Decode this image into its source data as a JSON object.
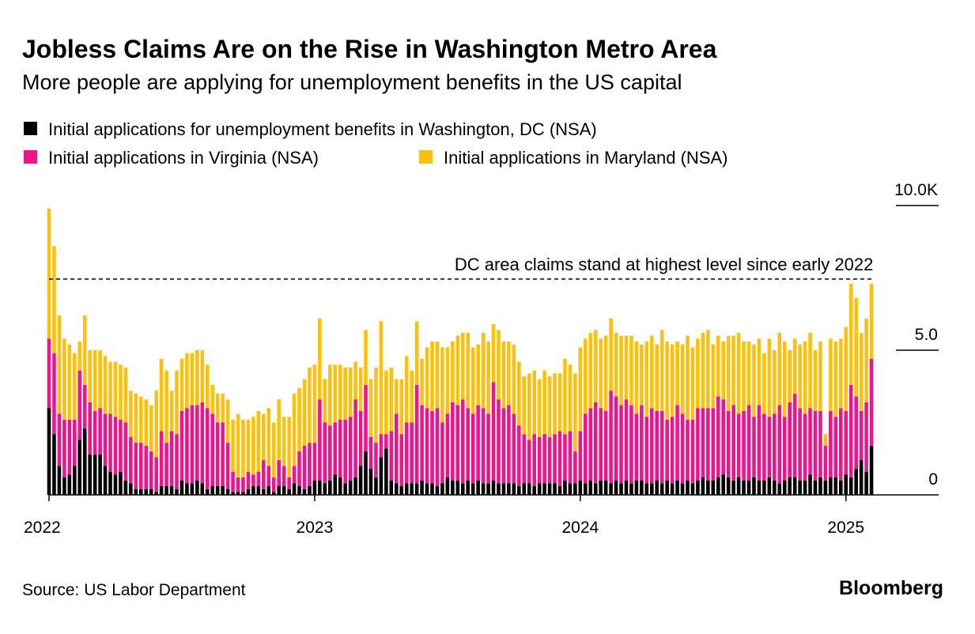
{
  "chart_data": {
    "type": "stacked_bar",
    "title": "Jobless Claims Are on the Rise in Washington Metro Area",
    "subtitle": "More people are applying for unemployment benefits in the US capital",
    "source": "Source: US Labor Department",
    "brand": "Bloomberg",
    "annotation": {
      "value": 7.46,
      "label": "DC area claims stand at highest level since early 2022"
    },
    "categories": [
      "2022",
      null,
      null,
      null,
      null,
      null,
      null,
      null,
      null,
      null,
      null,
      null,
      null,
      null,
      null,
      null,
      null,
      null,
      null,
      null,
      null,
      null,
      null,
      null,
      null,
      null,
      null,
      null,
      null,
      null,
      null,
      null,
      null,
      null,
      null,
      null,
      null,
      null,
      null,
      null,
      null,
      null,
      null,
      null,
      null,
      null,
      null,
      null,
      null,
      null,
      null,
      null,
      "2023",
      null,
      null,
      null,
      null,
      null,
      null,
      null,
      null,
      null,
      null,
      null,
      null,
      null,
      null,
      null,
      null,
      null,
      null,
      null,
      null,
      null,
      null,
      null,
      null,
      null,
      null,
      null,
      null,
      null,
      null,
      null,
      null,
      null,
      null,
      null,
      null,
      null,
      null,
      null,
      null,
      null,
      null,
      null,
      null,
      null,
      null,
      null,
      null,
      null,
      null,
      null,
      "2024",
      null,
      null,
      null,
      null,
      null,
      null,
      null,
      null,
      null,
      null,
      null,
      null,
      null,
      null,
      null,
      null,
      null,
      null,
      null,
      null,
      null,
      null,
      null,
      null,
      null,
      null,
      null,
      null,
      null,
      null,
      null,
      null,
      null,
      null,
      null,
      null,
      null,
      null,
      null,
      null,
      null,
      null,
      null,
      null,
      null,
      null,
      null,
      null,
      null,
      null,
      null,
      "2025",
      null,
      null,
      null,
      null,
      null
    ],
    "ylim": [
      0,
      10
    ],
    "yticks": [
      0,
      {
        "value": 5,
        "label": "5.0"
      },
      {
        "value": 10,
        "label": "10.0K"
      }
    ],
    "series": [
      {
        "name": "Initial applications for unemployment benefits in Washington, DC (NSA)",
        "color": "#000000",
        "values": [
          3.0,
          2.1,
          1.0,
          0.6,
          0.7,
          1.0,
          1.9,
          2.3,
          1.4,
          1.4,
          1.4,
          1.0,
          0.8,
          0.7,
          0.8,
          0.5,
          0.4,
          0.2,
          0.2,
          0.2,
          0.2,
          0.1,
          0.3,
          0.3,
          0.3,
          0.2,
          0.5,
          0.4,
          0.4,
          0.5,
          0.4,
          0.2,
          0.3,
          0.3,
          0.3,
          0.2,
          0.1,
          0.1,
          0.1,
          0.2,
          0.3,
          0.3,
          0.2,
          0.3,
          0.1,
          0.3,
          0.3,
          0.2,
          0.4,
          0.3,
          0.2,
          0.3,
          0.5,
          0.5,
          0.4,
          0.5,
          0.7,
          0.6,
          0.4,
          0.5,
          0.6,
          1.0,
          1.5,
          0.9,
          0.6,
          1.3,
          1.6,
          0.5,
          0.4,
          0.3,
          0.4,
          0.4,
          0.4,
          0.5,
          0.4,
          0.4,
          0.3,
          0.4,
          0.6,
          0.5,
          0.5,
          0.4,
          0.5,
          0.4,
          0.5,
          0.4,
          0.4,
          0.5,
          0.4,
          0.4,
          0.4,
          0.4,
          0.3,
          0.4,
          0.4,
          0.3,
          0.4,
          0.4,
          0.4,
          0.4,
          0.3,
          0.5,
          0.4,
          0.4,
          0.5,
          0.4,
          0.5,
          0.4,
          0.5,
          0.5,
          0.4,
          0.5,
          0.4,
          0.5,
          0.4,
          0.5,
          0.5,
          0.4,
          0.4,
          0.5,
          0.4,
          0.5,
          0.4,
          0.5,
          0.4,
          0.5,
          0.4,
          0.5,
          0.6,
          0.5,
          0.5,
          0.6,
          0.7,
          0.6,
          0.5,
          0.6,
          0.5,
          0.5,
          0.6,
          0.5,
          0.5,
          0.6,
          0.5,
          0.4,
          0.5,
          0.6,
          0.6,
          0.5,
          0.5,
          0.7,
          0.5,
          0.6,
          0.5,
          0.6,
          0.6,
          0.5,
          0.7,
          0.6,
          0.9,
          1.2,
          0.8,
          1.7
        ]
      },
      {
        "name": "Initial applications in Virginia (NSA)",
        "color": "#ec168c",
        "values": [
          2.4,
          2.8,
          1.8,
          2.0,
          1.9,
          1.6,
          2.4,
          1.5,
          1.8,
          1.5,
          1.6,
          1.8,
          2.0,
          2.0,
          1.8,
          2.0,
          1.6,
          1.6,
          1.6,
          1.5,
          1.3,
          1.2,
          1.9,
          1.5,
          1.9,
          1.9,
          2.4,
          2.6,
          2.7,
          2.6,
          2.8,
          2.8,
          2.5,
          2.2,
          2.2,
          1.6,
          0.7,
          0.5,
          0.5,
          0.6,
          0.4,
          0.5,
          1.0,
          0.7,
          0.5,
          0.9,
          0.7,
          0.4,
          0.6,
          1.2,
          1.5,
          1.5,
          1.3,
          2.8,
          2.1,
          1.9,
          1.8,
          2.0,
          2.2,
          2.2,
          2.7,
          1.9,
          2.3,
          1.1,
          1.2,
          0.8,
          0.5,
          1.7,
          2.4,
          1.8,
          2.1,
          2.1,
          3.4,
          2.6,
          2.6,
          2.5,
          2.7,
          2.1,
          2.2,
          2.7,
          2.6,
          2.9,
          2.5,
          2.4,
          2.6,
          2.6,
          2.4,
          3.4,
          2.9,
          2.6,
          2.7,
          2.4,
          2.1,
          1.7,
          1.5,
          1.8,
          1.6,
          1.7,
          1.6,
          1.7,
          1.9,
          1.6,
          1.8,
          1.1,
          1.7,
          2.4,
          2.5,
          2.8,
          2.5,
          2.4,
          3.2,
          2.9,
          2.7,
          2.8,
          2.7,
          2.3,
          2.6,
          2.3,
          2.6,
          2.4,
          2.5,
          2.1,
          2.3,
          2.6,
          2.4,
          2.1,
          2.2,
          2.5,
          2.4,
          2.5,
          2.5,
          2.8,
          2.6,
          2.3,
          2.6,
          2.2,
          2.4,
          2.6,
          2.1,
          2.6,
          2.3,
          2.1,
          2.3,
          2.7,
          2.2,
          2.6,
          2.9,
          2.5,
          2.3,
          2.3,
          2.4,
          2.3,
          1.2,
          2.3,
          2.1,
          2.5,
          2.2,
          3.2,
          2.5,
          1.7,
          2.4,
          3.0
        ]
      },
      {
        "name": "Initial applications in Maryland (NSA)",
        "color": "#fcc10e",
        "values": [
          4.5,
          3.7,
          3.4,
          2.8,
          2.6,
          2.3,
          1.0,
          2.4,
          1.8,
          2.1,
          2.0,
          2.0,
          1.8,
          1.9,
          1.9,
          1.9,
          1.6,
          1.7,
          1.6,
          1.6,
          1.6,
          2.3,
          2.5,
          2.5,
          1.4,
          2.2,
          1.8,
          1.9,
          1.8,
          1.9,
          1.8,
          1.5,
          1.0,
          1.0,
          1.0,
          1.5,
          1.8,
          2.2,
          2.0,
          1.8,
          2.0,
          2.1,
          1.6,
          2.0,
          1.9,
          2.1,
          1.7,
          2.1,
          2.5,
          2.2,
          2.3,
          2.6,
          2.7,
          2.8,
          1.5,
          2.1,
          2.0,
          1.9,
          1.8,
          1.7,
          1.3,
          1.5,
          1.9,
          2.0,
          2.6,
          3.9,
          2.2,
          2.2,
          1.2,
          1.9,
          2.3,
          1.8,
          2.2,
          1.6,
          2.1,
          2.4,
          2.3,
          2.6,
          2.3,
          2.1,
          2.4,
          2.3,
          2.6,
          2.3,
          2.1,
          2.6,
          2.5,
          2.0,
          2.4,
          2.3,
          2.2,
          2.4,
          2.2,
          2.0,
          2.3,
          2.2,
          2.0,
          2.2,
          2.1,
          2.1,
          2.0,
          2.6,
          2.3,
          2.7,
          2.9,
          2.6,
          2.6,
          2.5,
          2.4,
          2.6,
          2.5,
          2.2,
          2.4,
          2.2,
          2.4,
          2.5,
          2.1,
          2.6,
          2.5,
          2.3,
          2.8,
          2.7,
          2.5,
          2.2,
          2.4,
          2.9,
          2.5,
          2.4,
          2.6,
          2.7,
          2.2,
          2.1,
          2.0,
          2.6,
          2.4,
          2.8,
          2.4,
          2.2,
          2.5,
          2.3,
          2.1,
          2.7,
          2.2,
          2.5,
          2.6,
          1.8,
          1.9,
          2.2,
          2.5,
          2.6,
          2.1,
          2.4,
          0.4,
          2.5,
          2.6,
          2.4,
          2.9,
          3.5,
          3.4,
          2.7,
          2.9,
          2.6
        ]
      }
    ]
  }
}
